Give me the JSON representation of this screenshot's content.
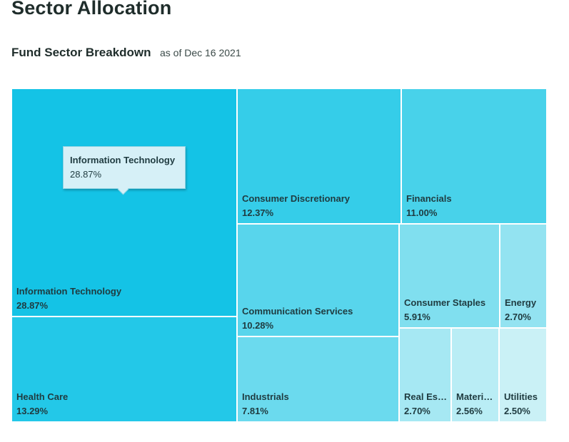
{
  "page": {
    "title": "Sector Allocation"
  },
  "chart_data": {
    "type": "treemap",
    "title": "Fund Sector Breakdown",
    "subtitle": "as of Dec 16 2021",
    "unit": "%",
    "items": [
      {
        "name": "Information Technology",
        "label": "Information Technology",
        "value": 28.87,
        "display": "28.87%",
        "color": "#14c3e6"
      },
      {
        "name": "Health Care",
        "label": "Health Care",
        "value": 13.29,
        "display": "13.29%",
        "color": "#23c8e8"
      },
      {
        "name": "Consumer Discretionary",
        "label": "Consumer Discretionary",
        "value": 12.37,
        "display": "12.37%",
        "color": "#35cde9"
      },
      {
        "name": "Financials",
        "label": "Financials",
        "value": 11.0,
        "display": "11.00%",
        "color": "#48d2ea"
      },
      {
        "name": "Communication Services",
        "label": "Communication Services",
        "value": 10.28,
        "display": "10.28%",
        "color": "#58d5ec"
      },
      {
        "name": "Industrials",
        "label": "Industrials",
        "value": 7.81,
        "display": "7.81%",
        "color": "#6bdaee"
      },
      {
        "name": "Consumer Staples",
        "label": "Consumer Staples",
        "value": 5.91,
        "display": "5.91%",
        "color": "#80dfef"
      },
      {
        "name": "Energy",
        "label": "Energy",
        "value": 2.7,
        "display": "2.70%",
        "color": "#93e3f1"
      },
      {
        "name": "Real Estate",
        "label": "Real Est...",
        "value": 2.7,
        "display": "2.70%",
        "color": "#a6e8f3"
      },
      {
        "name": "Materials",
        "label": "Materia...",
        "value": 2.56,
        "display": "2.56%",
        "color": "#b9edf5"
      },
      {
        "name": "Utilities",
        "label": "Utilities",
        "value": 2.5,
        "display": "2.50%",
        "color": "#caf1f6"
      }
    ],
    "tooltip": {
      "name": "Information Technology",
      "display": "28.87%"
    }
  }
}
